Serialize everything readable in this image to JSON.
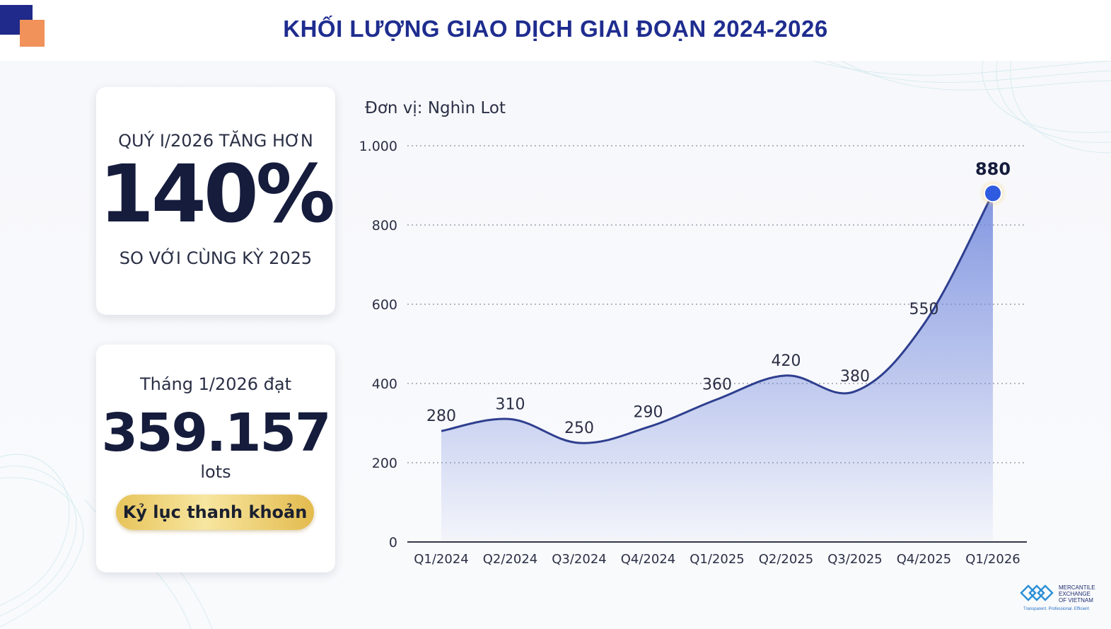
{
  "header": {
    "title": "KHỐI LƯỢNG GIAO DỊCH GIAI ĐOẠN 2024-2026"
  },
  "card_growth": {
    "top_text": "QUÝ I/2026 TĂNG HƠN",
    "big_value": "140%",
    "bottom_text": "SO VỚI CÙNG KỲ 2025"
  },
  "card_monthly": {
    "top_text": "Tháng 1/2026 đạt",
    "big_value": "359.157",
    "unit": "lots",
    "badge": "Kỷ lục thanh khoản"
  },
  "chart_data": {
    "type": "area",
    "unit_label": "Đơn vị: Nghìn Lot",
    "categories": [
      "Q1/2024",
      "Q2/2024",
      "Q3/2024",
      "Q4/2024",
      "Q1/2025",
      "Q2/2025",
      "Q3/2025",
      "Q4/2025",
      "Q1/2026"
    ],
    "values": [
      280,
      310,
      250,
      290,
      360,
      420,
      380,
      550,
      880
    ],
    "data_labels": [
      "280",
      "310",
      "250",
      "290",
      "360",
      "420",
      "380",
      "550",
      "880"
    ],
    "y_ticks": [
      0,
      200,
      400,
      600,
      800,
      1000
    ],
    "y_tick_labels": [
      "0",
      "200",
      "400",
      "600",
      "800",
      "1.000"
    ],
    "ylim": [
      0,
      1000
    ],
    "grid": true,
    "line_color": "#2f3f8f",
    "fill_color": "#6f86dc",
    "marker_color": "#2e5be0"
  },
  "logo": {
    "name_lines": [
      "MERCANTILE",
      "EXCHANGE",
      "OF VIETNAM"
    ],
    "tagline": "Transparent. Professional. Efficient"
  }
}
